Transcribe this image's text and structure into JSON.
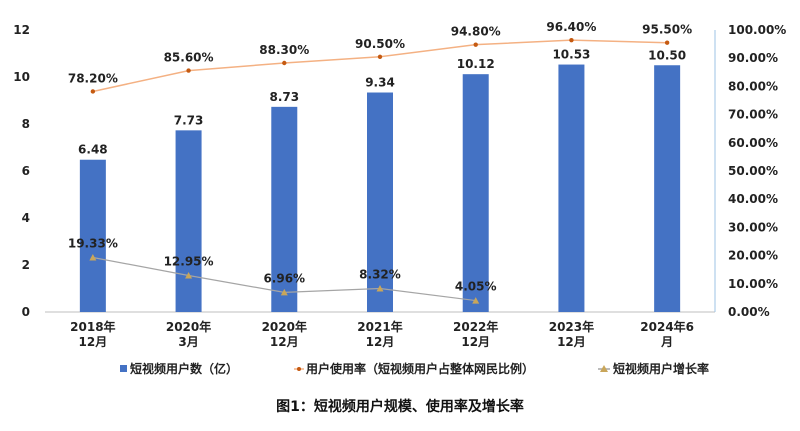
{
  "chart_data": {
    "type": "bar",
    "title": "图1：短视频用户规模、使用率及增长率",
    "categories": [
      [
        "2018年",
        "12月"
      ],
      [
        "2020年",
        "3月"
      ],
      [
        "2020年",
        "12月"
      ],
      [
        "2021年",
        "12月"
      ],
      [
        "2022年",
        "12月"
      ],
      [
        "2023年",
        "12月"
      ],
      [
        "2024年6",
        "月"
      ]
    ],
    "ylim": [
      0,
      12
    ],
    "y_ticks": [
      "0",
      "2",
      "4",
      "6",
      "8",
      "10",
      "12"
    ],
    "y2lim": [
      0,
      100
    ],
    "y2_ticks": [
      "0.00%",
      "10.00%",
      "20.00%",
      "30.00%",
      "40.00%",
      "50.00%",
      "60.00%",
      "70.00%",
      "80.00%",
      "90.00%",
      "100.00%"
    ],
    "grid": false,
    "legend_position": "bottom",
    "series": [
      {
        "name": "短视频用户数（亿）",
        "type": "bar",
        "axis": "left",
        "color": "#4472C4",
        "values": [
          6.48,
          7.73,
          8.73,
          9.34,
          10.12,
          10.53,
          10.5
        ],
        "labels": [
          "6.48",
          "7.73",
          "8.73",
          "9.34",
          "10.12",
          "10.53",
          "10.50"
        ]
      },
      {
        "name": "用户使用率（短视频用户占整体网民比例）",
        "type": "line",
        "axis": "right",
        "color": "#F4B183",
        "marker_color": "#C55A11",
        "values": [
          78.2,
          85.6,
          88.3,
          90.5,
          94.8,
          96.4,
          95.5
        ],
        "labels": [
          "78.20%",
          "85.60%",
          "88.30%",
          "90.50%",
          "94.80%",
          "96.40%",
          "95.50%"
        ]
      },
      {
        "name": "短视频用户增长率",
        "type": "line",
        "axis": "right",
        "color": "#A5A5A5",
        "marker_color": "#C9A65A",
        "values": [
          19.33,
          12.95,
          6.96,
          8.32,
          4.05,
          null,
          null
        ],
        "labels": [
          "19.33%",
          "12.95%",
          "6.96%",
          "8.32%",
          "4.05%",
          "",
          ""
        ]
      }
    ]
  }
}
